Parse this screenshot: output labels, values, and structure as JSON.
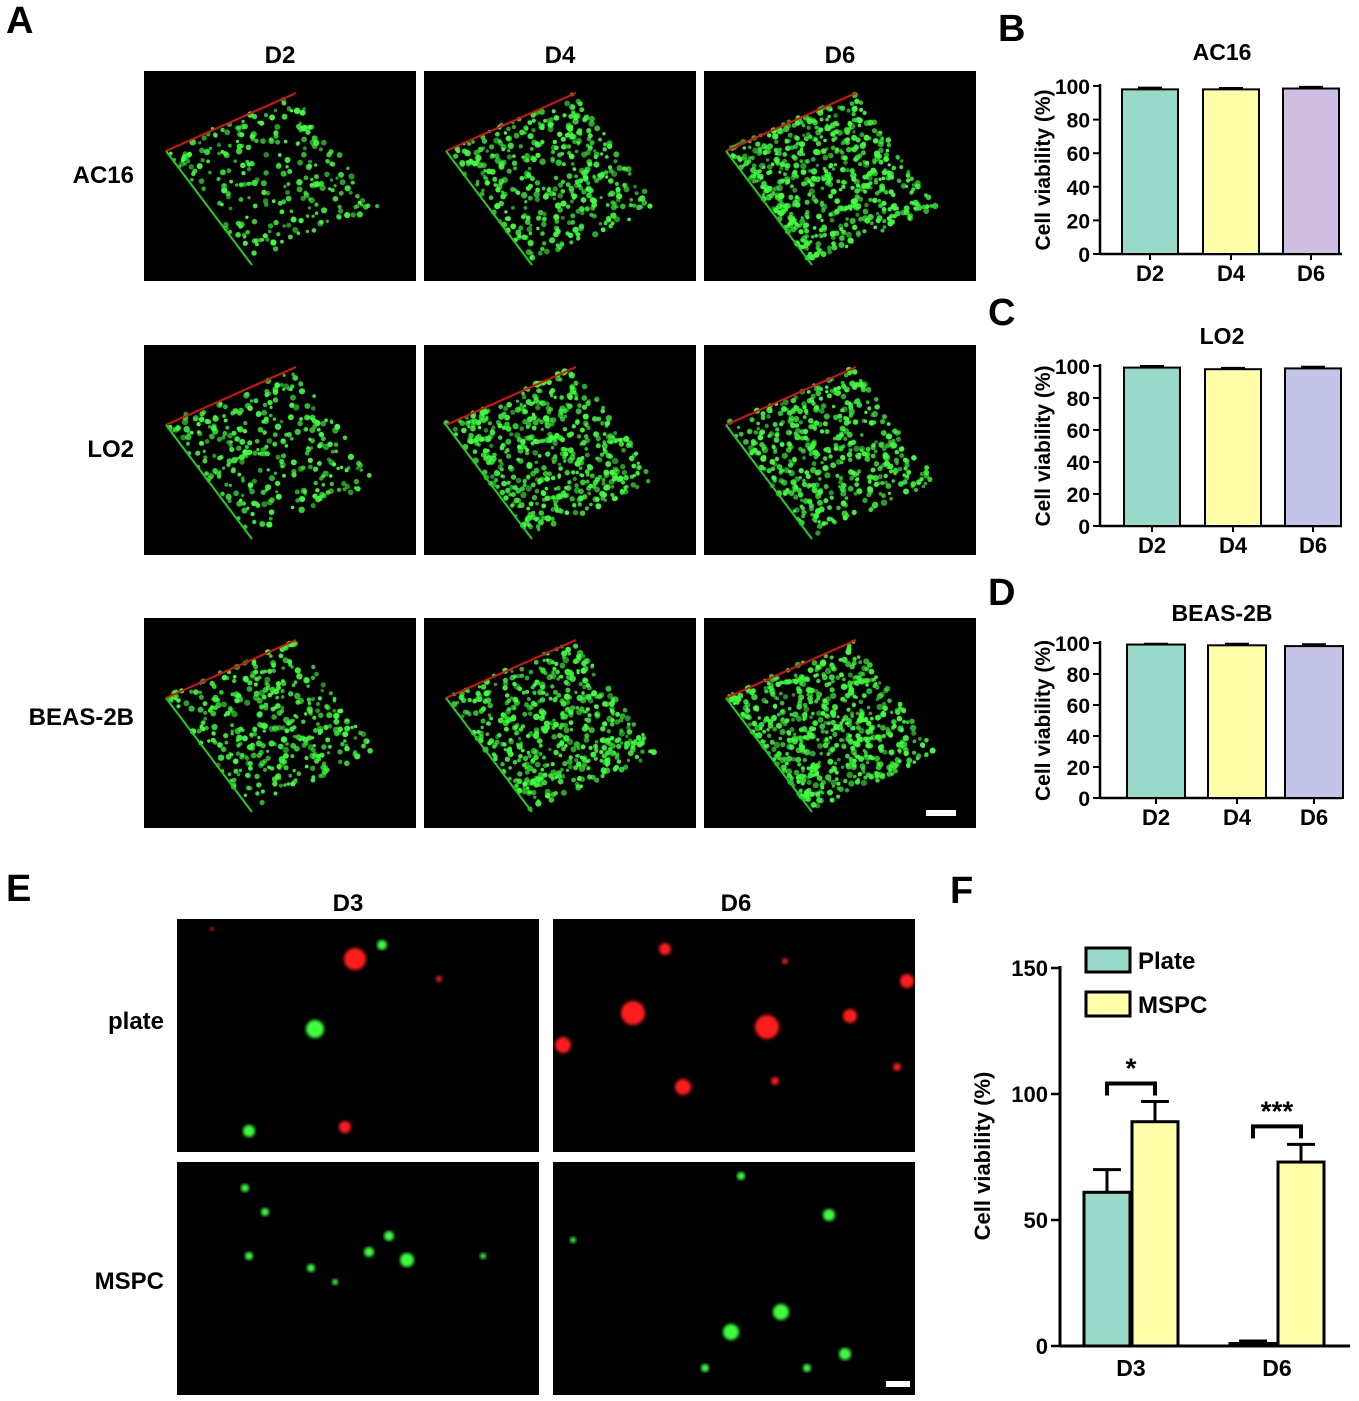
{
  "panels": {
    "a": "A",
    "b": "B",
    "c": "C",
    "d": "D",
    "e": "E",
    "f": "F"
  },
  "panel_a": {
    "columns": [
      "D2",
      "D4",
      "D6"
    ],
    "rows": [
      "AC16",
      "LO2",
      "BEAS-2B"
    ]
  },
  "panel_e": {
    "columns": [
      "D3",
      "D6"
    ],
    "rows": [
      "plate",
      "MSPC"
    ]
  },
  "colors": {
    "teal": "#99d9c9",
    "yellow": "#ffffaa",
    "lavender_b": "#cfbfe0",
    "lavender_cd": "#c4c4e8",
    "live_green": "#3dff3d",
    "dead_red": "#ff1a1a"
  },
  "chart_data": [
    {
      "id": "B",
      "type": "bar",
      "title": "AC16",
      "categories": [
        "D2",
        "D4",
        "D6"
      ],
      "values": [
        98,
        98,
        98.5
      ],
      "errors": [
        1,
        0.8,
        1
      ],
      "ylabel": "Cell viability (%)",
      "ylim": [
        0,
        100
      ],
      "yticks": [
        "0",
        "20",
        "40",
        "60",
        "80",
        "100"
      ]
    },
    {
      "id": "C",
      "type": "bar",
      "title": "LO2",
      "categories": [
        "D2",
        "D4",
        "D6"
      ],
      "values": [
        99,
        98,
        98.5
      ],
      "errors": [
        1,
        0.8,
        1
      ],
      "ylabel": "Cell viability (%)",
      "ylim": [
        0,
        100
      ],
      "yticks": [
        "0",
        "20",
        "40",
        "60",
        "80",
        "100"
      ]
    },
    {
      "id": "D",
      "type": "bar",
      "title": "BEAS-2B",
      "categories": [
        "D2",
        "D4",
        "D6"
      ],
      "values": [
        99,
        98.5,
        98
      ],
      "errors": [
        0.5,
        1,
        1.2
      ],
      "ylabel": "Cell viability (%)",
      "ylim": [
        0,
        100
      ],
      "yticks": [
        "0",
        "20",
        "40",
        "60",
        "80",
        "100"
      ]
    },
    {
      "id": "F",
      "type": "bar",
      "categories": [
        "D3",
        "D6"
      ],
      "series": [
        {
          "name": "Plate",
          "values": [
            61,
            1
          ],
          "errors": [
            9,
            1
          ]
        },
        {
          "name": "MSPC",
          "values": [
            89,
            73
          ],
          "errors": [
            8,
            7
          ]
        }
      ],
      "ylabel": "Cell viability (%)",
      "ylim": [
        0,
        150
      ],
      "yticks": [
        "0",
        "50",
        "100",
        "150"
      ],
      "legend_position": "top-left",
      "significance": [
        "*",
        "***"
      ]
    }
  ]
}
